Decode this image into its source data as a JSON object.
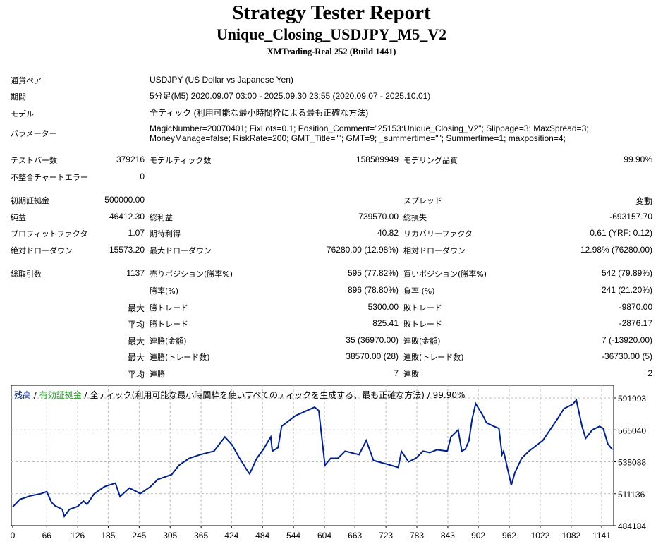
{
  "header": {
    "title": "Strategy Tester Report",
    "subtitle": "Unique_Closing_USDJPY_M5_V2",
    "server": "XMTrading-Real 252 (Build 1441)"
  },
  "info": [
    {
      "label": "通貨ペア",
      "value": "USDJPY (US Dollar vs Japanese Yen)"
    },
    {
      "label": "期間",
      "value": "5分足(M5) 2020.09.07 03:00 - 2025.09.30 23:55 (2020.09.07 - 2025.10.01)"
    },
    {
      "label": "モデル",
      "value": "全ティック (利用可能な最小時間枠による最も正確な方法)"
    },
    {
      "label": "パラメーター",
      "value": "MagicNumber=20070401; FixLots=0.1; Position_Comment=\"25153:Unique_Closing_V2\"; Slippage=3; MaxSpread=3;",
      "value2": "MoneyManage=false; RiskRate=200; GMT_Title=\"\"; GMT=9; _summertime=\"\"; Summertime=1; maxposition=4;"
    }
  ],
  "stats": [
    [
      [
        "テストバー数",
        "379216"
      ],
      [
        "モデルティック数",
        "158589949"
      ],
      [
        "モデリング品質",
        "99.90%"
      ]
    ],
    [
      [
        "不整合チャートエラー",
        "0"
      ],
      [
        "",
        ""
      ],
      [
        "",
        ""
      ]
    ],
    [
      [
        "初期証拠金",
        "500000.00"
      ],
      [
        "",
        ""
      ],
      [
        "スプレッド",
        "変動"
      ]
    ],
    [
      [
        "純益",
        "46412.30"
      ],
      [
        "総利益",
        "739570.00"
      ],
      [
        "総損失",
        "-693157.70"
      ]
    ],
    [
      [
        "プロフィットファクタ",
        "1.07"
      ],
      [
        "期待利得",
        "40.82"
      ],
      [
        "リカバリーファクタ",
        "0.61 (YRF: 0.12)"
      ]
    ],
    [
      [
        "絶対ドローダウン",
        "15573.20"
      ],
      [
        "最大ドローダウン",
        "76280.00 (12.98%)"
      ],
      [
        "相対ドローダウン",
        "12.98% (76280.00)"
      ]
    ],
    [
      [
        "総取引数",
        "1137"
      ],
      [
        "売りポジション(勝率%)",
        "595 (77.82%)"
      ],
      [
        "買いポジション(勝率%)",
        "542 (79.89%)"
      ]
    ],
    [
      [
        "",
        ""
      ],
      [
        "勝率(%)",
        "896 (78.80%)"
      ],
      [
        "負率 (%)",
        "241 (21.20%)"
      ]
    ],
    [
      [
        "",
        "最大"
      ],
      [
        "勝トレード",
        "5300.00"
      ],
      [
        "敗トレード",
        "-9870.00"
      ]
    ],
    [
      [
        "",
        "平均"
      ],
      [
        "勝トレード",
        "825.41"
      ],
      [
        "敗トレード",
        "-2876.17"
      ]
    ],
    [
      [
        "",
        "最大"
      ],
      [
        "連勝(金額)",
        "35 (36970.00)"
      ],
      [
        "連敗(金額)",
        "7 (-13920.00)"
      ]
    ],
    [
      [
        "",
        "最大"
      ],
      [
        "連勝(トレード数)",
        "38570.00 (28)"
      ],
      [
        "連敗(トレード数)",
        "-36730.00 (5)"
      ]
    ],
    [
      [
        "",
        "平均"
      ],
      [
        "連勝",
        "7"
      ],
      [
        "連敗",
        "2"
      ]
    ]
  ],
  "chart_data": {
    "type": "line",
    "legend": {
      "balance": "残高",
      "sep": " / ",
      "equity": "有効証拠金",
      "desc": " / 全ティック(利用可能な最小時間枠を使いすべてのティックを生成する、最も正確な方法) / 99.90%"
    },
    "colors": {
      "balance": "#00208c",
      "equity": "#2e9a2e",
      "legend_text": "#000000"
    },
    "x_ticks": [
      "0",
      "66",
      "126",
      "185",
      "245",
      "305",
      "365",
      "424",
      "484",
      "544",
      "604",
      "663",
      "723",
      "783",
      "843",
      "902",
      "962",
      "1022",
      "1082",
      "1141"
    ],
    "y_ticks": [
      "591993",
      "565040",
      "538088",
      "511136",
      "484184"
    ],
    "ylim": [
      484184,
      591993
    ],
    "xlim": [
      0,
      1163
    ],
    "grid": true,
    "series": [
      {
        "name": "残高",
        "points": [
          [
            0,
            500000
          ],
          [
            14,
            506350
          ],
          [
            34,
            509340
          ],
          [
            55,
            511140
          ],
          [
            66,
            512940
          ],
          [
            75,
            503950
          ],
          [
            82,
            500960
          ],
          [
            96,
            497960
          ],
          [
            100,
            491970
          ],
          [
            110,
            497960
          ],
          [
            126,
            500360
          ],
          [
            137,
            505000
          ],
          [
            144,
            502150
          ],
          [
            158,
            511140
          ],
          [
            178,
            517130
          ],
          [
            199,
            520120
          ],
          [
            208,
            508740
          ],
          [
            226,
            515930
          ],
          [
            240,
            512940
          ],
          [
            247,
            511140
          ],
          [
            267,
            517130
          ],
          [
            281,
            523120
          ],
          [
            308,
            527310
          ],
          [
            322,
            535100
          ],
          [
            342,
            541090
          ],
          [
            363,
            544080
          ],
          [
            390,
            547080
          ],
          [
            411,
            559060
          ],
          [
            425,
            552470
          ],
          [
            438,
            542290
          ],
          [
            455,
            530310
          ],
          [
            459,
            527910
          ],
          [
            473,
            541090
          ],
          [
            486,
            548880
          ],
          [
            500,
            559060
          ],
          [
            503,
            547080
          ],
          [
            514,
            550080
          ],
          [
            521,
            568040
          ],
          [
            548,
            577030
          ],
          [
            585,
            584220
          ],
          [
            593,
            581220
          ],
          [
            605,
            535100
          ],
          [
            616,
            541090
          ],
          [
            630,
            541090
          ],
          [
            644,
            547080
          ],
          [
            671,
            544080
          ],
          [
            685,
            556060
          ],
          [
            699,
            539290
          ],
          [
            733,
            535100
          ],
          [
            747,
            533300
          ],
          [
            753,
            547080
          ],
          [
            767,
            538090
          ],
          [
            781,
            541090
          ],
          [
            795,
            547080
          ],
          [
            808,
            545880
          ],
          [
            822,
            548280
          ],
          [
            842,
            547080
          ],
          [
            849,
            559060
          ],
          [
            863,
            565050
          ],
          [
            870,
            547080
          ],
          [
            877,
            548880
          ],
          [
            884,
            556060
          ],
          [
            890,
            574030
          ],
          [
            897,
            587210
          ],
          [
            911,
            577030
          ],
          [
            918,
            571040
          ],
          [
            932,
            568040
          ],
          [
            942,
            566250
          ],
          [
            948,
            544080
          ],
          [
            951,
            547080
          ],
          [
            966,
            518330
          ],
          [
            973,
            529110
          ],
          [
            986,
            541090
          ],
          [
            1000,
            547080
          ],
          [
            1027,
            556060
          ],
          [
            1055,
            574030
          ],
          [
            1068,
            583020
          ],
          [
            1085,
            586610
          ],
          [
            1092,
            590210
          ],
          [
            1103,
            568040
          ],
          [
            1110,
            557860
          ],
          [
            1123,
            565050
          ],
          [
            1137,
            568040
          ],
          [
            1144,
            566250
          ],
          [
            1153,
            553070
          ],
          [
            1162,
            548280
          ]
        ]
      }
    ]
  }
}
